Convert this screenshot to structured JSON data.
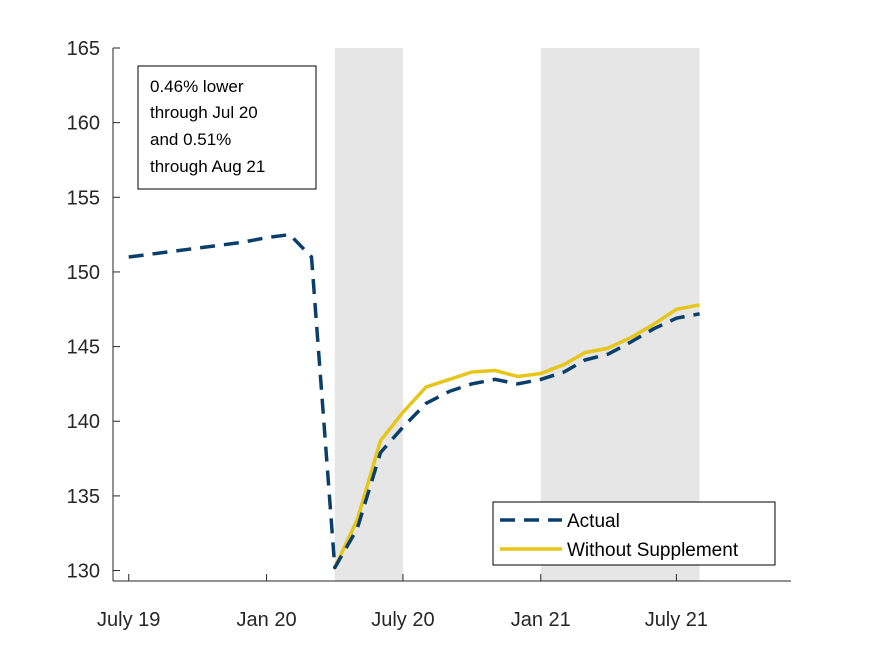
{
  "chart_data": {
    "type": "line",
    "x_months": [
      "2019-07",
      "2019-08",
      "2019-09",
      "2019-10",
      "2019-11",
      "2019-12",
      "2020-01",
      "2020-02",
      "2020-03",
      "2020-04",
      "2020-05",
      "2020-06",
      "2020-07",
      "2020-08",
      "2020-09",
      "2020-10",
      "2020-11",
      "2020-12",
      "2021-01",
      "2021-02",
      "2021-03",
      "2021-04",
      "2021-05",
      "2021-06",
      "2021-07",
      "2021-08"
    ],
    "xlim": [
      "2019-06-10",
      "2021-12-01"
    ],
    "xticks": [
      {
        "date": "2019-07",
        "label": "July 19"
      },
      {
        "date": "2020-01",
        "label": "Jan 20"
      },
      {
        "date": "2020-07",
        "label": "July 20"
      },
      {
        "date": "2021-01",
        "label": "Jan 21"
      },
      {
        "date": "2021-07",
        "label": "July 21"
      }
    ],
    "ylim": [
      129.3,
      165
    ],
    "yticks": [
      130,
      135,
      140,
      145,
      150,
      155,
      160,
      165
    ],
    "series": [
      {
        "name": "Actual",
        "color": "#0b3f6b",
        "style": "dashed",
        "values": [
          151.0,
          151.2,
          151.4,
          151.6,
          151.8,
          152.0,
          152.3,
          152.5,
          151.0,
          130.2,
          132.8,
          137.9,
          139.6,
          141.2,
          142.0,
          142.5,
          142.8,
          142.5,
          142.8,
          143.3,
          144.1,
          144.5,
          145.3,
          146.2,
          146.9,
          147.2
        ]
      },
      {
        "name": "Without Supplement",
        "color": "#e6c619",
        "style": "solid",
        "values": [
          null,
          null,
          null,
          null,
          null,
          null,
          null,
          null,
          null,
          130.2,
          133.4,
          138.7,
          140.6,
          142.3,
          142.8,
          143.3,
          143.4,
          143.0,
          143.2,
          143.8,
          144.6,
          144.9,
          145.6,
          146.5,
          147.5,
          147.8
        ]
      }
    ],
    "shaded_periods": [
      {
        "start": "2020-04",
        "end": "2020-07"
      },
      {
        "start": "2021-01",
        "end": "2021-08"
      }
    ],
    "annotation": [
      "0.46% lower",
      "through Jul 20",
      "and 0.51%",
      "through Aug 21"
    ],
    "legend_position": "bottom-right",
    "grid": false
  }
}
